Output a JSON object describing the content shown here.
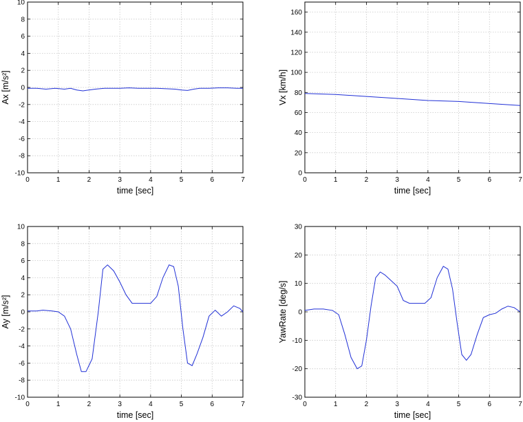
{
  "chart_data": [
    {
      "type": "line",
      "xlabel": "time [sec]",
      "ylabel": "Ax [m/s²]",
      "xlim": [
        0,
        7
      ],
      "ylim": [
        -10,
        10
      ],
      "xticks": [
        0,
        1,
        2,
        3,
        4,
        5,
        6,
        7
      ],
      "yticks": [
        -10,
        -8,
        -6,
        -4,
        -2,
        0,
        2,
        4,
        6,
        8,
        10
      ],
      "grid": true,
      "color": "#1f2fd6",
      "x": [
        0,
        0.3,
        0.6,
        0.9,
        1.2,
        1.4,
        1.6,
        1.8,
        2.0,
        2.2,
        2.5,
        2.8,
        3.0,
        3.3,
        3.6,
        3.9,
        4.2,
        4.5,
        4.8,
        5.0,
        5.2,
        5.4,
        5.6,
        5.9,
        6.2,
        6.5,
        6.8,
        7.0
      ],
      "y": [
        -0.1,
        -0.1,
        -0.2,
        -0.1,
        -0.2,
        -0.1,
        -0.3,
        -0.4,
        -0.3,
        -0.2,
        -0.1,
        -0.1,
        -0.1,
        -0.05,
        -0.1,
        -0.1,
        -0.1,
        -0.15,
        -0.2,
        -0.3,
        -0.35,
        -0.2,
        -0.1,
        -0.1,
        -0.05,
        -0.05,
        -0.1,
        -0.1
      ]
    },
    {
      "type": "line",
      "xlabel": "time [sec]",
      "ylabel": "Vx [km/h]",
      "xlim": [
        0,
        7
      ],
      "ylim": [
        0,
        170
      ],
      "xticks": [
        0,
        1,
        2,
        3,
        4,
        5,
        6,
        7
      ],
      "yticks": [
        0,
        20,
        40,
        60,
        80,
        100,
        120,
        140,
        160
      ],
      "grid": true,
      "color": "#1f2fd6",
      "x": [
        0,
        1,
        2,
        3,
        4,
        5,
        6,
        7
      ],
      "y": [
        79,
        78,
        76,
        74,
        72,
        71,
        69,
        67
      ]
    },
    {
      "type": "line",
      "xlabel": "time [sec]",
      "ylabel": "Ay [m/s²]",
      "xlim": [
        0,
        7
      ],
      "ylim": [
        -10,
        10
      ],
      "xticks": [
        0,
        1,
        2,
        3,
        4,
        5,
        6,
        7
      ],
      "yticks": [
        -10,
        -8,
        -6,
        -4,
        -2,
        0,
        2,
        4,
        6,
        8,
        10
      ],
      "grid": true,
      "color": "#1f2fd6",
      "x": [
        0,
        0.3,
        0.5,
        0.8,
        1.0,
        1.2,
        1.4,
        1.6,
        1.75,
        1.9,
        2.1,
        2.3,
        2.45,
        2.6,
        2.8,
        3.0,
        3.2,
        3.4,
        3.6,
        3.8,
        4.0,
        4.2,
        4.4,
        4.6,
        4.75,
        4.9,
        5.05,
        5.2,
        5.35,
        5.5,
        5.7,
        5.9,
        6.1,
        6.3,
        6.5,
        6.7,
        6.9,
        7.0
      ],
      "y": [
        0.1,
        0.1,
        0.2,
        0.1,
        0.0,
        -0.5,
        -2.0,
        -5.0,
        -7.0,
        -7.0,
        -5.5,
        0.0,
        5.0,
        5.5,
        4.8,
        3.5,
        2.0,
        1.0,
        1.0,
        1.0,
        1.0,
        1.8,
        4.0,
        5.5,
        5.3,
        3.0,
        -2.0,
        -6.0,
        -6.3,
        -5.0,
        -3.0,
        -0.5,
        0.2,
        -0.5,
        0.0,
        0.7,
        0.4,
        0.0
      ]
    },
    {
      "type": "line",
      "xlabel": "time [sec]",
      "ylabel": "YawRate [deg/s]",
      "xlim": [
        0,
        7
      ],
      "ylim": [
        -30,
        30
      ],
      "xticks": [
        0,
        1,
        2,
        3,
        4,
        5,
        6,
        7
      ],
      "yticks": [
        -30,
        -20,
        -10,
        0,
        10,
        20,
        30
      ],
      "grid": true,
      "color": "#1f2fd6",
      "x": [
        0,
        0.3,
        0.6,
        0.9,
        1.1,
        1.3,
        1.5,
        1.7,
        1.85,
        2.0,
        2.15,
        2.3,
        2.45,
        2.6,
        2.8,
        3.0,
        3.2,
        3.4,
        3.6,
        3.9,
        4.1,
        4.3,
        4.5,
        4.65,
        4.8,
        4.95,
        5.1,
        5.25,
        5.4,
        5.6,
        5.8,
        6.0,
        6.2,
        6.4,
        6.6,
        6.8,
        7.0
      ],
      "y": [
        0.5,
        1.0,
        1.0,
        0.5,
        -1.0,
        -8.0,
        -16.0,
        -20.0,
        -19.0,
        -10.0,
        2.0,
        12.0,
        14.0,
        13.0,
        11.0,
        9.0,
        4.0,
        3.0,
        3.0,
        3.0,
        5.0,
        12.0,
        16.0,
        15.0,
        8.0,
        -4.0,
        -15.0,
        -17.0,
        -15.0,
        -8.0,
        -2.0,
        -1.0,
        -0.5,
        1.0,
        2.0,
        1.5,
        0.0
      ]
    }
  ]
}
